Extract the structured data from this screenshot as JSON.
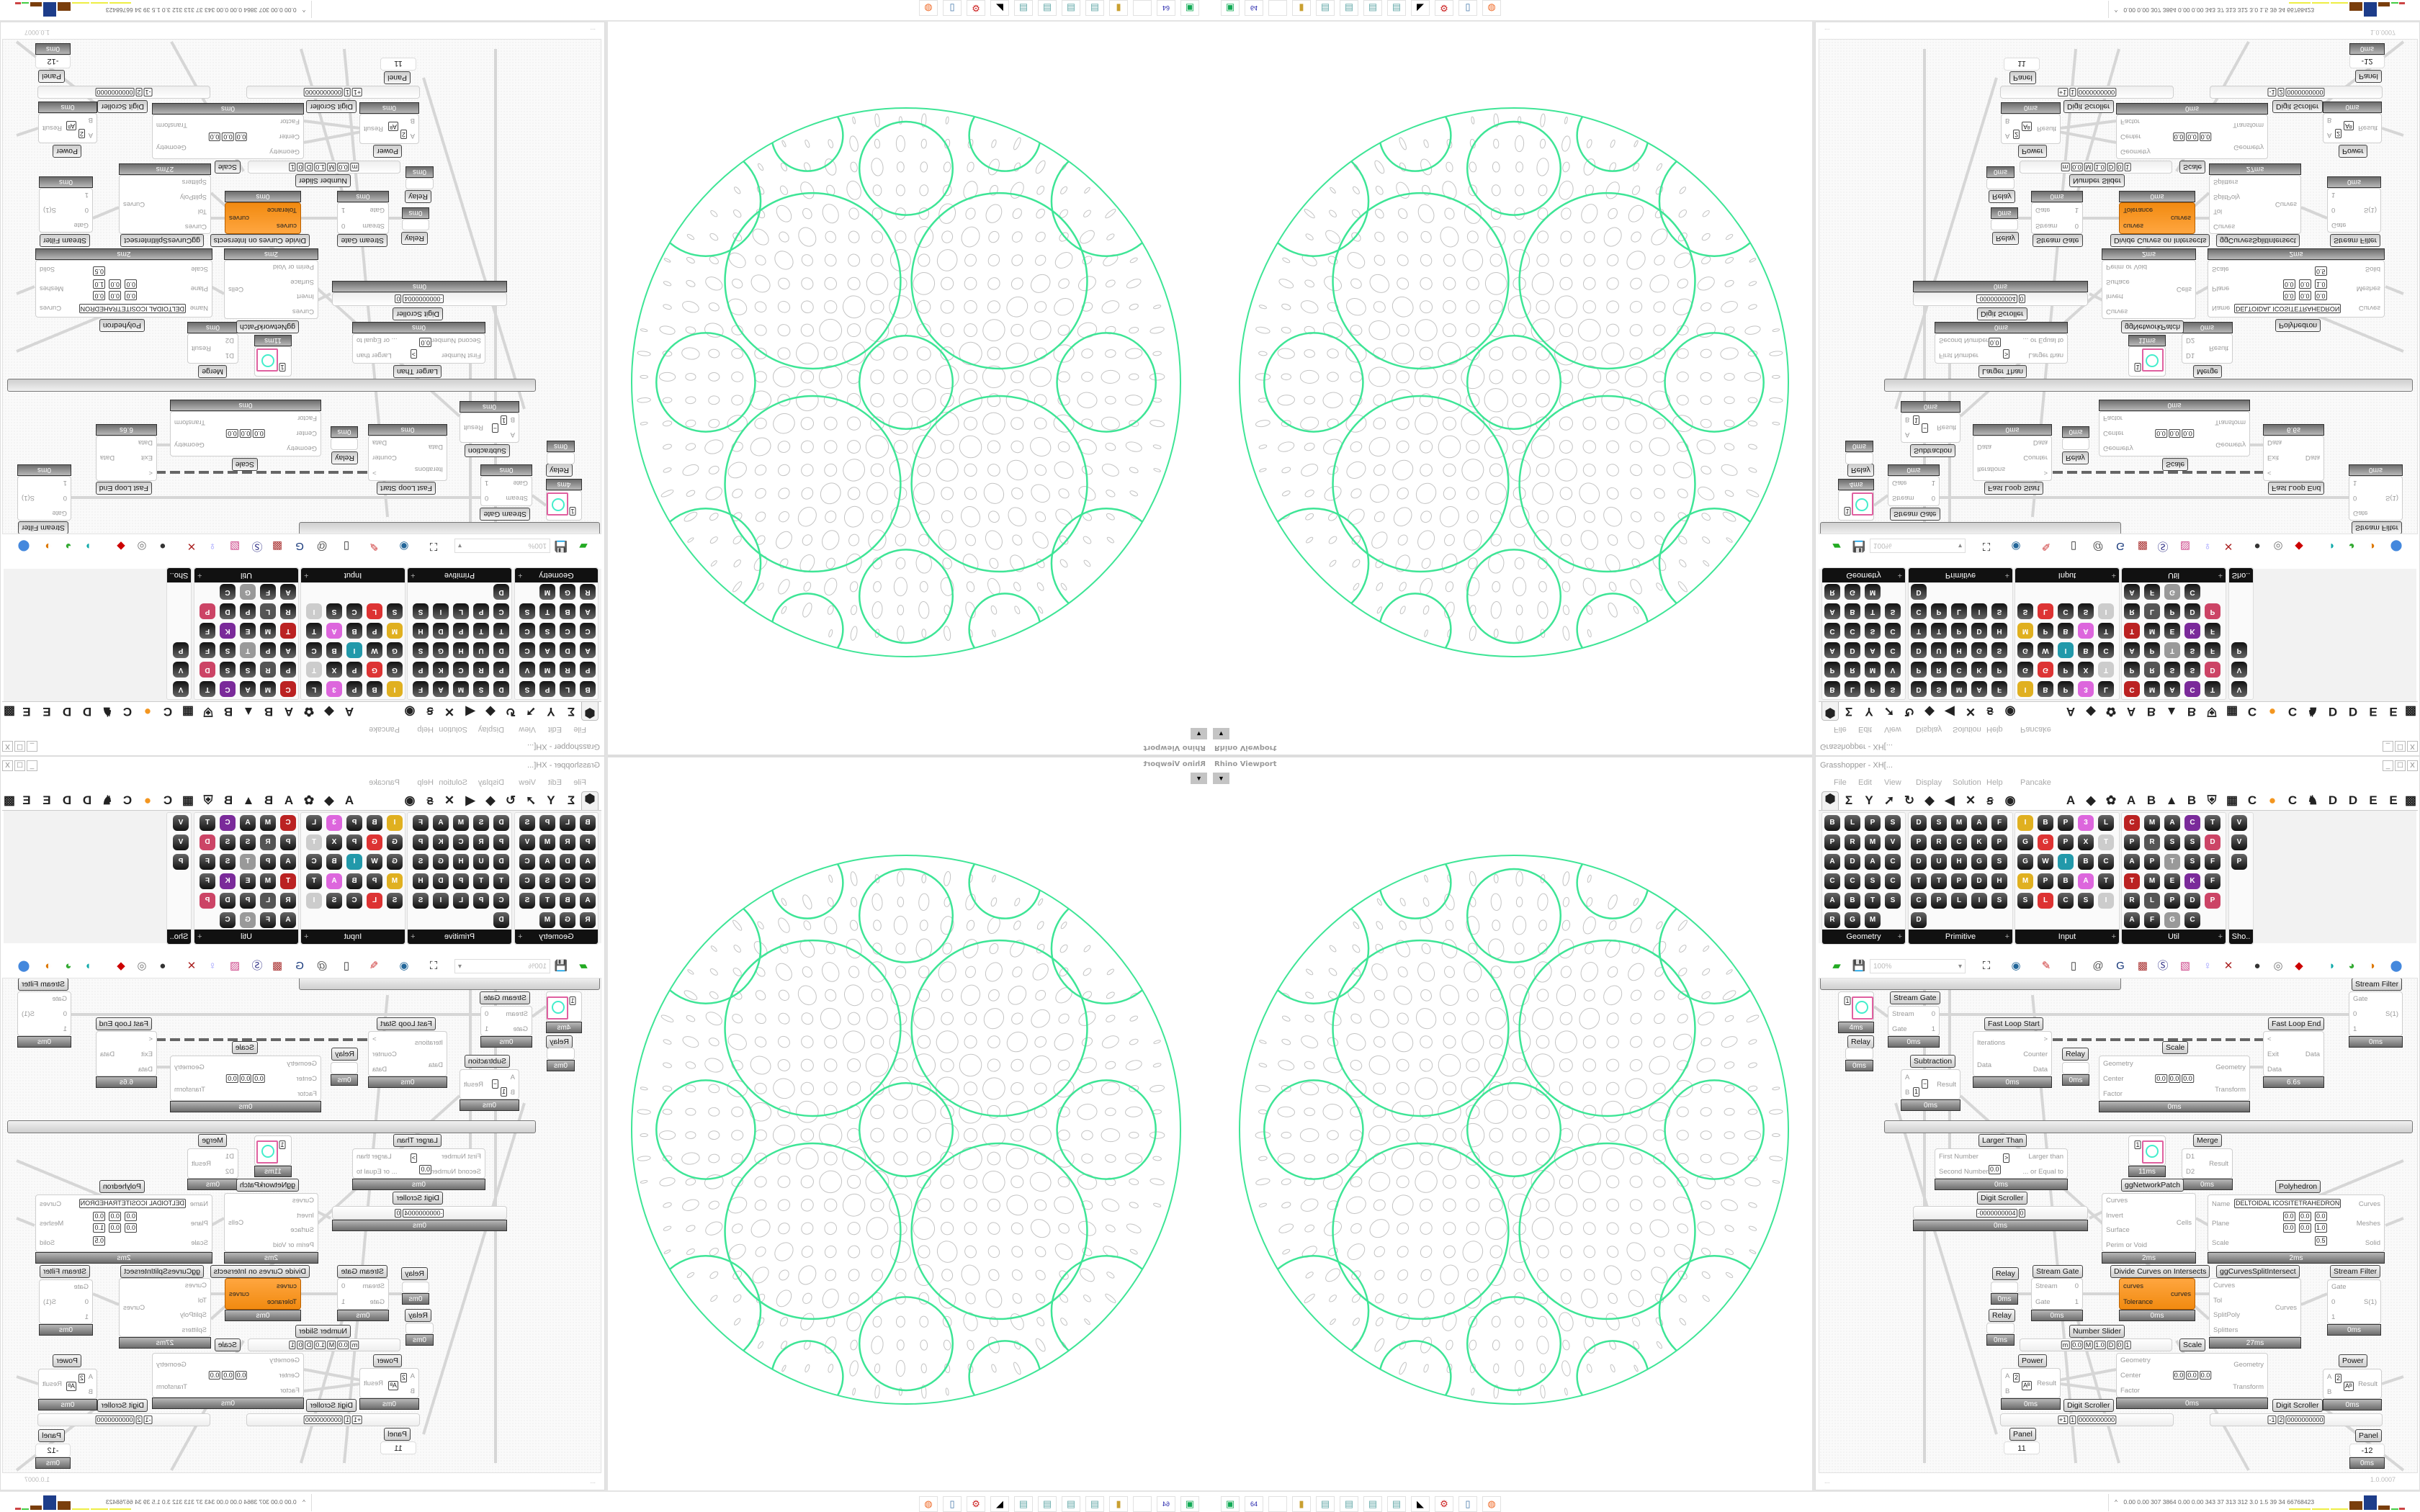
{
  "viewport": {
    "label": "Rhino Viewport",
    "dropdown_icon": "caret-down-icon"
  },
  "colors": {
    "mesh_green": "#3ee596",
    "pattern_gray": "#c4c4c4",
    "component_orange": "#f39620",
    "tray_blue": "#1d3d8a",
    "tray_brown": "#7a3e0c"
  },
  "window": {
    "title": "Grasshopper - XH[...",
    "buttons": {
      "minimize": "_",
      "maximize": "☐",
      "close": "X"
    },
    "menu": [
      "File",
      "Edit",
      "View",
      "Display",
      "Solution",
      "Help",
      "Pancake"
    ],
    "tabs": [
      "⬢",
      "Σ",
      "Y",
      "➚",
      "↻",
      "◆",
      "◀",
      "✕",
      "ꞩ",
      "◉",
      "A",
      "◆",
      "✿",
      "A",
      "B",
      "▲",
      "B",
      "⛨",
      "▦",
      "C",
      "●",
      "C",
      "♞",
      "D",
      "D",
      "E",
      "E",
      "▩"
    ],
    "panels": [
      {
        "title": "Geometry",
        "icons": [
          "box",
          "line",
          "plane",
          "spiral",
          "point",
          "rectangle",
          "mesh",
          "vector",
          "arrow",
          "diamond",
          "abc",
          "curve",
          "circle",
          "cube",
          "surface",
          "cluster",
          "arc",
          "brep",
          "twist",
          "sphere",
          "ring",
          "geodesic",
          "magnet"
        ]
      },
      {
        "title": "Primitive",
        "icons": [
          "drop",
          "star",
          "matrix",
          "angle",
          "file",
          "polygon",
          "rings",
          "clock",
          "key",
          "pie",
          "domain",
          "uc",
          "hatch",
          "gear",
          "seven",
          "transform",
          "tree",
          "pen",
          "decimal",
          "hash",
          "complex",
          "path",
          "letter-a",
          "id",
          "sphere",
          "dome"
        ]
      },
      {
        "title": "Input",
        "icons": [
          "import",
          "button",
          "prism",
          "3dm",
          "link",
          "graph",
          "gumball",
          "paint",
          "xyz",
          "toggle",
          "gradient",
          "wheel",
          "img",
          "ball",
          "checker",
          "mapper",
          "pdb",
          "bolt",
          "aug-20",
          "target",
          "shp",
          "list",
          "clock",
          "swatch",
          "id"
        ]
      },
      {
        "title": "Util",
        "icons": [
          "cherry",
          "magnet",
          "arrow",
          "cluster",
          "text-a",
          "play",
          "rec",
          "search",
          "spiral",
          "disc",
          "axes",
          "pencil",
          "timer",
          "seven",
          "flask",
          "tree",
          "mask",
          "egg",
          "key",
          "fx",
          "ring",
          "loop",
          "pr",
          "decimal",
          "palette",
          "abc",
          "forward",
          "gauge",
          "close"
        ]
      },
      {
        "title": "Sho..",
        "icons": [
          "vr-headset",
          "vr-headset",
          "presentation"
        ]
      }
    ],
    "toolbar": {
      "zoom_value": "100%",
      "icons": [
        "new-file",
        "save",
        "fit-view",
        "eye",
        "sketch",
        "cluster",
        "email",
        "gha",
        "preview",
        "search-s",
        "package",
        "bulb",
        "wires",
        "sphere",
        "torus",
        "red-shape",
        "cyan",
        "green",
        "half-sphere",
        "blue-sphere"
      ]
    },
    "status": {
      "left": "...",
      "version": "1.0.0007"
    }
  },
  "canvas": {
    "nodes": [
      {
        "label": null,
        "kind": "preview",
        "values": [
          "1"
        ],
        "time": "4ms"
      },
      {
        "label": "Relay",
        "kind": "relay",
        "time": "0ms"
      },
      {
        "label": "Stream Gate",
        "inputs": [
          "Stream",
          "Gate"
        ],
        "outputs": [
          "0",
          "1"
        ],
        "time": "0ms"
      },
      {
        "label": "Subtraction",
        "inputs": [
          "A",
          "B"
        ],
        "outputs": [
          "Result"
        ],
        "values": [
          "1",
          "−"
        ],
        "time": "0ms"
      },
      {
        "label": "Fast Loop Start",
        "inputs": [
          "Iterations",
          "Data"
        ],
        "outputs": [
          ">",
          "Counter",
          "Data"
        ],
        "time": "0ms"
      },
      {
        "label": "Relay",
        "kind": "relay",
        "time": "0ms"
      },
      {
        "label": "Scale",
        "inputs": [
          "Geometry",
          "Center",
          "Factor"
        ],
        "outputs": [
          "Geometry",
          "Transform"
        ],
        "values": [
          "0.0",
          "0.0",
          "0.0"
        ],
        "time": "0ms"
      },
      {
        "label": "Fast Loop End",
        "inputs": [
          "<",
          "Exit",
          "Data"
        ],
        "outputs": [
          "Data"
        ],
        "time": "6.6s"
      },
      {
        "label": "Stream Filter",
        "inputs": [
          "Gate",
          "0",
          "1"
        ],
        "outputs": [
          "S(1)"
        ],
        "time": "0ms"
      },
      {
        "label": "Larger Than",
        "inputs": [
          "First Number",
          "Second Number"
        ],
        "outputs": [
          "Larger than",
          "... or Equal to"
        ],
        "values": [
          "0.0",
          ">"
        ],
        "time": "0ms"
      },
      {
        "label": null,
        "kind": "preview",
        "values": [
          "1"
        ],
        "time": "11ms"
      },
      {
        "label": "Merge",
        "inputs": [
          "D1",
          "D2"
        ],
        "outputs": [
          "Result"
        ],
        "time": "0ms"
      },
      {
        "label": "Digit Scroller",
        "kind": "slider",
        "values": [
          "·0000000004",
          "0"
        ],
        "time": "0ms"
      },
      {
        "label": "ggNetworkPatch",
        "inputs": [
          "Curves",
          "Invert",
          "Surface",
          "Perim or Void"
        ],
        "outputs": [
          "Cells"
        ],
        "time": "2ms"
      },
      {
        "label": "Polyhedron",
        "inputs": [
          "Name",
          "Plane",
          "Scale"
        ],
        "outputs": [
          "Curves",
          "Meshes",
          "Solid"
        ],
        "values": [
          "DELTOIDAL ICOSITETRAHEDRON",
          "0.0",
          "0.0",
          "0.0",
          "0.0",
          "0.0",
          "1.0",
          "0.5"
        ],
        "time": "2ms"
      },
      {
        "label": "Relay",
        "kind": "relay",
        "time": "0ms"
      },
      {
        "label": "Stream Gate",
        "inputs": [
          "Stream",
          "Gate"
        ],
        "outputs": [
          "0",
          "1"
        ],
        "time": "0ms"
      },
      {
        "label": "Divide Curves on Intersects",
        "kind": "orange",
        "inputs": [
          "curves",
          "Tolerance"
        ],
        "outputs": [
          "curves"
        ],
        "time": "0ms"
      },
      {
        "label": "ggCurvesSplitIntersect",
        "inputs": [
          "Curves",
          "Tol",
          "SplitPoly",
          "Splitters"
        ],
        "outputs": [
          "Curves"
        ],
        "time": "27ms"
      },
      {
        "label": "Stream Filter",
        "inputs": [
          "Gate",
          "0",
          "1"
        ],
        "outputs": [
          "S(1)"
        ],
        "time": "0ms"
      },
      {
        "label": "Relay",
        "kind": "relay",
        "time": "0ms"
      },
      {
        "label": "Number Slider",
        "kind": "slider",
        "values": [
          "m",
          "0.0",
          "M",
          "1.0",
          "D",
          "0",
          "1"
        ],
        "time": null
      },
      {
        "label": "Power",
        "inputs": [
          "A",
          "B"
        ],
        "outputs": [
          "Result"
        ],
        "values": [
          "2",
          "Aᴮ"
        ],
        "time": "0ms"
      },
      {
        "label": "Scale",
        "inputs": [
          "Geometry",
          "Center",
          "Factor"
        ],
        "outputs": [
          "Geometry",
          "Transform"
        ],
        "values": [
          "0.0",
          "0.0",
          "0.0"
        ],
        "time": "0ms"
      },
      {
        "label": "Power",
        "inputs": [
          "A",
          "B"
        ],
        "outputs": [
          "Result"
        ],
        "values": [
          "2",
          "Aᴮ"
        ],
        "time": "0ms"
      },
      {
        "label": "Digit Scroller",
        "kind": "slider",
        "values": [
          "+1",
          "1",
          "0000000000"
        ],
        "time": null
      },
      {
        "label": "Digit Scroller",
        "kind": "slider",
        "values": [
          "-1",
          "2",
          "0000000000"
        ],
        "time": null
      },
      {
        "label": "Panel",
        "kind": "panel",
        "values": [
          "11"
        ],
        "time": null
      },
      {
        "label": "Panel",
        "kind": "panel",
        "values": [
          "-12"
        ],
        "time": "0ms"
      }
    ]
  },
  "taskbar": {
    "apps": [
      {
        "icon": "terminal-icon",
        "glyph": "▣"
      },
      {
        "icon": "floppy-icon",
        "glyph": "64"
      },
      {
        "icon": "blank-icon",
        "glyph": ""
      },
      {
        "icon": "folder-icon",
        "glyph": "▮"
      },
      {
        "icon": "notepad-icon",
        "glyph": "▤"
      },
      {
        "icon": "notepad-icon",
        "glyph": "▤"
      },
      {
        "icon": "notepad-icon",
        "glyph": "▤"
      },
      {
        "icon": "notepad-icon",
        "glyph": "▤"
      },
      {
        "icon": "inkscape-icon",
        "glyph": "◣"
      },
      {
        "icon": "gear-icon",
        "glyph": "⚙"
      },
      {
        "icon": "calculator-icon",
        "glyph": "▯"
      },
      {
        "icon": "firefox-icon",
        "glyph": "◍"
      }
    ],
    "tray_chevron": "^",
    "tray_text": "0.00 0.00 307 3864 0.00 0.00 343  37  313  312  3.0  1.5  39  34  66768423"
  }
}
